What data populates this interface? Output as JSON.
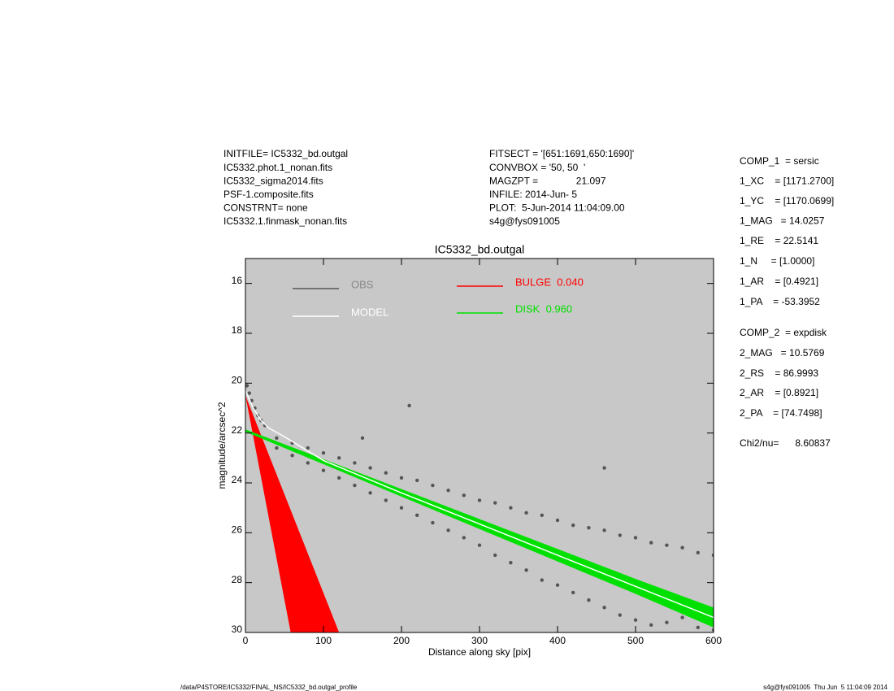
{
  "header": {
    "left": [
      "INITFILE= IC5332_bd.outgal",
      "IC5332.phot.1_nonan.fits",
      "IC5332_sigma2014.fits",
      "PSF-1.composite.fits",
      "CONSTRNT= none",
      "IC5332.1.finmask_nonan.fits"
    ],
    "middle": [
      "FITSECT = '[651:1691,650:1690]'",
      "CONVBOX = '50, 50  '",
      "MAGZPT =              21.097",
      "INFILE: 2014-Jun- 5",
      "PLOT:  5-Jun-2014 11:04:09.00",
      "s4g@fys091005"
    ]
  },
  "parameters": [
    "COMP_1  = sersic",
    "1_XC    = [1171.2700]",
    "1_YC    = [1170.0699]",
    "1_MAG   = 14.0257",
    "1_RE    = 22.5141",
    "1_N     = [1.0000]",
    "1_AR    = [0.4921]",
    "1_PA    = -53.3952",
    "COMP_2  = expdisk",
    "2_MAG   = 10.5769",
    "2_RS    = 86.9993",
    "2_AR    = [0.8921]",
    "2_PA    = [74.7498]",
    "Chi2/nu=      8.60837"
  ],
  "footer": {
    "left": "/data/P4STORE/IC5332/FINAL_NS/IC5332_bd.outgal_profile",
    "right": "s4g@fys091005  Thu Jun  5 11:04:09 2014"
  },
  "chart_data": {
    "type": "scatter",
    "title": "IC5332_bd.outgal",
    "x_label": "Distance along sky [pix]",
    "y_label": "magnitude/arcsec^2",
    "xlim": [
      0,
      600
    ],
    "ylim": [
      30,
      15
    ],
    "xticks": [
      0,
      100,
      200,
      300,
      400,
      500,
      600
    ],
    "yticks": [
      16,
      18,
      20,
      22,
      24,
      26,
      28,
      30
    ],
    "background": "#c8c8c8",
    "series": [
      {
        "name": "OBS",
        "type": "scatter",
        "color": "#555555",
        "x": [
          2,
          5,
          8,
          12,
          16,
          20,
          25,
          40,
          40,
          60,
          60,
          80,
          80,
          100,
          100,
          120,
          120,
          140,
          140,
          160,
          160,
          180,
          180,
          200,
          200,
          220,
          220,
          240,
          240,
          260,
          260,
          280,
          280,
          300,
          300,
          320,
          320,
          340,
          340,
          360,
          360,
          380,
          380,
          400,
          400,
          420,
          420,
          440,
          440,
          460,
          460,
          480,
          480,
          500,
          500,
          520,
          520,
          540,
          540,
          560,
          560,
          580,
          580,
          600,
          600,
          210,
          460,
          150
        ],
        "values": [
          20.1,
          20.4,
          20.7,
          21.0,
          21.3,
          21.5,
          21.7,
          22.2,
          22.6,
          22.4,
          22.9,
          22.6,
          23.2,
          22.8,
          23.5,
          23.0,
          23.8,
          23.2,
          24.1,
          23.4,
          24.4,
          23.6,
          24.7,
          23.8,
          25.0,
          23.9,
          25.3,
          24.1,
          25.6,
          24.3,
          25.9,
          24.5,
          26.2,
          24.7,
          26.5,
          24.8,
          26.9,
          25.0,
          27.2,
          25.2,
          27.5,
          25.3,
          27.9,
          25.5,
          28.1,
          25.7,
          28.4,
          25.8,
          28.7,
          25.9,
          29.0,
          26.1,
          29.3,
          26.2,
          29.5,
          26.4,
          29.7,
          26.5,
          29.6,
          26.6,
          29.4,
          26.8,
          29.8,
          26.9,
          29.9,
          20.9,
          23.4,
          22.2
        ]
      },
      {
        "name": "BULGE  0.040",
        "type": "area",
        "color": "#ff0000",
        "x": [
          0,
          120,
          58
        ],
        "values": [
          20.5,
          30,
          30
        ]
      },
      {
        "name": "DISK  0.960",
        "type": "area",
        "color": "#00e000",
        "x": [
          0,
          100,
          200,
          300,
          400,
          500,
          600,
          600,
          500,
          400,
          300,
          200,
          100,
          0
        ],
        "values": [
          21.85,
          23.05,
          24.25,
          25.45,
          26.65,
          27.85,
          29.0,
          29.8,
          28.45,
          27.15,
          25.85,
          24.55,
          23.25,
          21.95
        ]
      },
      {
        "name": "MODEL",
        "type": "line",
        "color": "#ffffff",
        "x": [
          0,
          10,
          20,
          30,
          50,
          100,
          200,
          300,
          400,
          500,
          600
        ],
        "values": [
          20.3,
          21.0,
          21.5,
          21.8,
          22.15,
          23.1,
          24.4,
          25.65,
          26.9,
          28.15,
          29.4
        ]
      }
    ]
  }
}
